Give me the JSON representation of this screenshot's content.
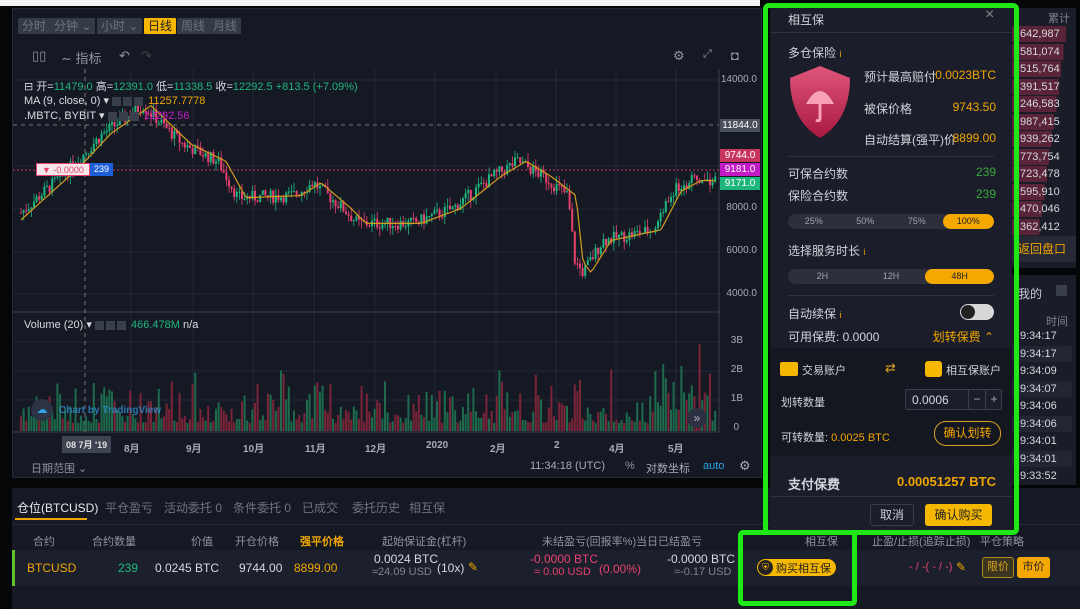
{
  "timeframes": [
    {
      "label": "分时",
      "active": false
    },
    {
      "label": "分钟 ⌄",
      "active": false
    },
    {
      "label": "小时 ⌄",
      "active": false
    },
    {
      "label": "日线",
      "active": true
    },
    {
      "label": "周线",
      "active": false
    },
    {
      "label": "月线",
      "active": false
    }
  ],
  "toolbar": {
    "indicators": "指标"
  },
  "ohlc": {
    "open_label": "开=",
    "open": "11479.0",
    "high_label": "高=",
    "high": "12391.0",
    "low_label": "低=",
    "low": "11338.5",
    "close_label": "收=",
    "close": "12292.5",
    "change": "+813.5 (+7.09%)"
  },
  "ma": {
    "label": "MA (9, close, 0) ▾",
    "value": "11257.7778"
  },
  "mbtc": {
    "label": ".MBTC, BYBIT ▾",
    "value": "12292.56"
  },
  "price_axis": [
    "14000.0",
    "8000.0",
    "6000.0",
    "4000.0"
  ],
  "price_tags": {
    "crosshair": "11844.0",
    "entry": "9744.0",
    "mark": "9181.0",
    "last": "9171.0"
  },
  "position_line": {
    "pnl": "▼ -0.0000",
    "qty": "239"
  },
  "volume": {
    "label": "Volume (20) ▾",
    "value": "466.478M",
    "na": "n/a",
    "axis": [
      "3B",
      "2B",
      "1B",
      "0"
    ]
  },
  "watermark": "Chart by TradingView",
  "date_axis": {
    "cursor": "08 7月 '19",
    "labels": [
      "8月",
      "9月",
      "10月",
      "11月",
      "12月",
      "2020",
      "2月",
      "2",
      "4月",
      "5月"
    ]
  },
  "chart_footer": {
    "range": "日期范围 ⌄",
    "time": "11:34:18 (UTC)",
    "percent": "%",
    "log": "对数坐标",
    "auto": "auto"
  },
  "colors": {
    "up": "#1fb67d",
    "down": "#e8416e",
    "accent": "#f5b700",
    "highlight": "#1fe816"
  },
  "modal": {
    "title": "相互保",
    "close": "×",
    "section": "多仓保险",
    "max_payout_label": "预计最高赔付",
    "max_payout": "0.0023BTC",
    "insured_price_label": "被保价格",
    "insured_price": "9743.50",
    "liq_label": "自动结算(强平)价",
    "liq_price": "8899.00",
    "insurable_label": "可保合约数",
    "insurable": "239",
    "insured_label": "保险合约数",
    "insured": "239",
    "ratios": [
      {
        "label": "25%",
        "on": false
      },
      {
        "label": "50%",
        "on": false
      },
      {
        "label": "75%",
        "on": false
      },
      {
        "label": "100%",
        "on": true
      }
    ],
    "duration_label": "选择服务时长",
    "durations": [
      {
        "label": "2H",
        "on": false
      },
      {
        "label": "12H",
        "on": false
      },
      {
        "label": "48H",
        "on": true
      }
    ],
    "auto_renew_label": "自动续保",
    "auto_renew": false,
    "available_label": "可用保费: 0.0000",
    "transfer_toggle": "划转保费 ⌃",
    "from_account": "交易账户",
    "to_account": "相互保账户",
    "amount_label": "划转数量",
    "amount": "0.0006",
    "transferable_label": "可转数量:",
    "transferable": "0.0025 BTC",
    "confirm_transfer": "确认划转",
    "pay_label": "支付保费",
    "pay_value": "0.00051257 BTC",
    "cancel": "取消",
    "confirm_buy": "确认购买"
  },
  "orderbook": {
    "header": "累计",
    "rows": [
      "642,987",
      "581,074",
      "515,764",
      "391,517",
      "246,583",
      "987,415",
      "939,262",
      "773,754",
      "723,478",
      "595,910",
      "470,046",
      "362,412"
    ],
    "back": "返回盘口"
  },
  "trades": {
    "tab": "我的",
    "header": "时间",
    "rows": [
      "9:34:17",
      "9:34:17",
      "9:34:09",
      "9:34:07",
      "9:34:06",
      "9:34:06",
      "9:34:01",
      "9:34:01",
      "9:33:52"
    ]
  },
  "bottom": {
    "tabs": [
      "仓位(BTCUSD)",
      "平仓盈亏",
      "活动委托 0",
      "条件委托 0",
      "已成交",
      "委托历史",
      "相互保"
    ],
    "headers": [
      "合约",
      "合约数量",
      "价值",
      "开仓价格",
      "强平价格",
      "起始保证金(杠杆)",
      "未结盈亏(回报率%)",
      "当日已结盈亏",
      "相互保",
      "止盈/止损(追踪止损)",
      "平仓策略"
    ],
    "row": {
      "symbol": "BTCUSD",
      "qty": "239",
      "value": "0.0245 BTC",
      "entry": "9744.00",
      "liq": "8899.00",
      "margin": "0.0024 BTC",
      "margin_usd": "≈24.09 USD",
      "leverage": "(10x)",
      "upnl": "-0.0000 BTC",
      "upnl_usd": "≈ 0.00 USD",
      "roe": "(0.00%)",
      "rpnl": "-0.0000 BTC",
      "rpnl_usd": "≈-0.17 USD",
      "buy_insurance": "购买相互保",
      "tpsl": "- / -( - / -)",
      "limit": "限价",
      "market": "市价"
    }
  }
}
